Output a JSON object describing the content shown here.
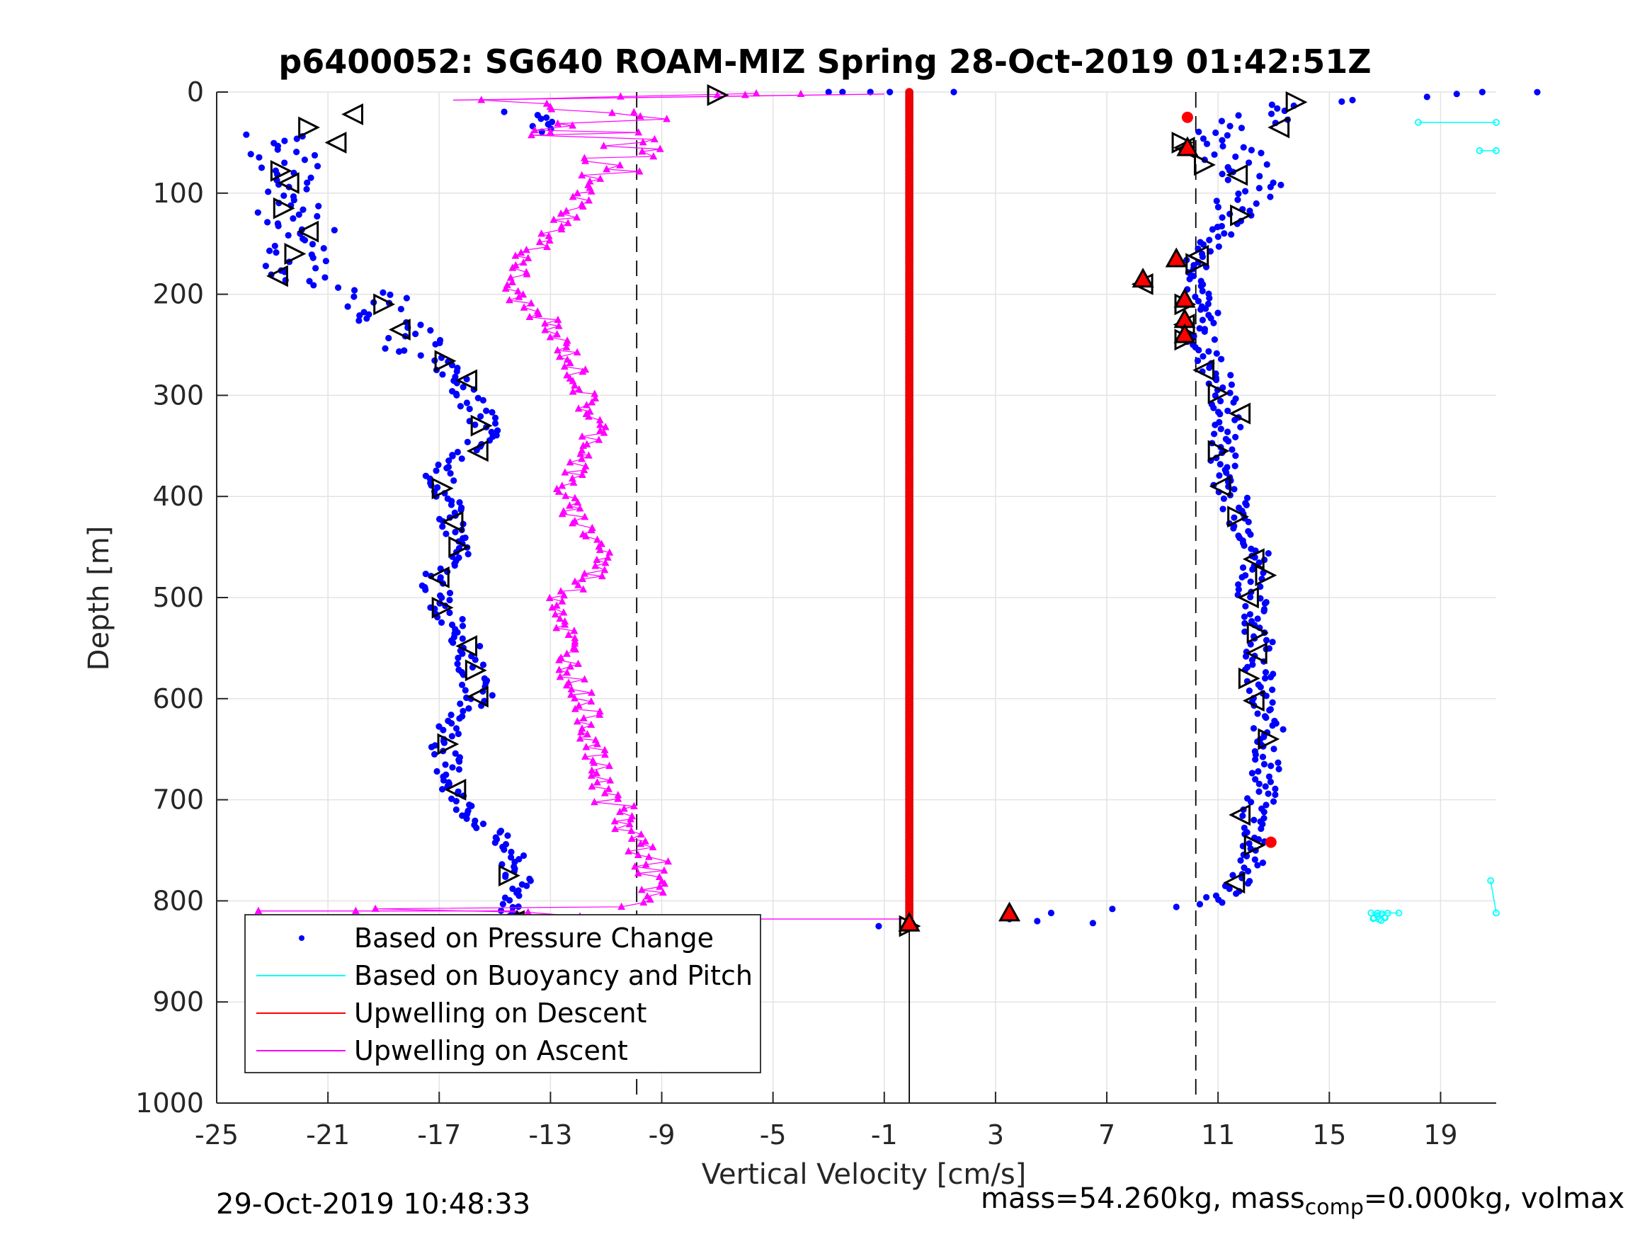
{
  "chart_data": {
    "type": "scatter",
    "title": "p6400052: SG640 ROAM-MIZ Spring 28-Oct-2019 01:42:51Z",
    "xlabel": "Vertical Velocity [cm/s]",
    "ylabel": "Depth [m]",
    "xlim": [
      -25,
      21
    ],
    "ylim": [
      0,
      1000
    ],
    "y_reversed": true,
    "grid": true,
    "xticks": [
      -25,
      -21,
      -17,
      -13,
      -9,
      -5,
      -1,
      3,
      7,
      11,
      15,
      19
    ],
    "yticks": [
      0,
      100,
      200,
      300,
      400,
      500,
      600,
      700,
      800,
      900,
      1000
    ],
    "legend_position": "bottom-left",
    "colors": {
      "pressure": "#0000ff",
      "buoyancy": "#00ffff",
      "upwell_descent": "#ff0000",
      "upwell_ascent": "#ff00ff"
    },
    "reference_lines": {
      "dashed_x": [
        -9.9,
        10.2
      ],
      "solid_x": [
        -0.1
      ]
    },
    "series": [
      {
        "name": "Based on Pressure Change",
        "style": "dots",
        "descent_profile": [
          [
            22.5,
            0
          ],
          [
            18.5,
            5
          ],
          [
            13.5,
            12
          ],
          [
            12.5,
            25
          ],
          [
            11,
            40
          ],
          [
            12,
            55
          ],
          [
            11.5,
            75
          ],
          [
            12.5,
            100
          ],
          [
            11.5,
            130
          ],
          [
            10.8,
            150
          ],
          [
            10.3,
            170
          ],
          [
            10.5,
            185
          ],
          [
            10.2,
            200
          ],
          [
            10.5,
            220
          ],
          [
            10.3,
            240
          ],
          [
            10.6,
            260
          ],
          [
            11,
            280
          ],
          [
            11.2,
            300
          ],
          [
            11.3,
            330
          ],
          [
            11.2,
            360
          ],
          [
            11.4,
            390
          ],
          [
            11.8,
            420
          ],
          [
            12.4,
            450
          ],
          [
            12.3,
            480
          ],
          [
            12.2,
            510
          ],
          [
            12.6,
            540
          ],
          [
            12.5,
            570
          ],
          [
            12.4,
            600
          ],
          [
            12.8,
            630
          ],
          [
            12.8,
            660
          ],
          [
            12.6,
            690
          ],
          [
            12.3,
            715
          ],
          [
            12.4,
            740
          ],
          [
            12.0,
            770
          ],
          [
            11.6,
            790
          ],
          [
            10.5,
            805
          ]
        ],
        "ascent_profile": [
          [
            -25,
            60
          ],
          [
            -23,
            40
          ],
          [
            -22.5,
            70
          ],
          [
            -22,
            100
          ],
          [
            -22.5,
            120
          ],
          [
            -21.8,
            140
          ],
          [
            -22,
            160
          ],
          [
            -22.5,
            180
          ],
          [
            -21,
            190
          ],
          [
            -19.5,
            200
          ],
          [
            -19,
            215
          ],
          [
            -18.5,
            235
          ],
          [
            -18,
            250
          ],
          [
            -17,
            265
          ],
          [
            -16.5,
            280
          ],
          [
            -16,
            300
          ],
          [
            -15.5,
            320
          ],
          [
            -15.2,
            340
          ],
          [
            -16.5,
            360
          ],
          [
            -17,
            380
          ],
          [
            -16.8,
            400
          ],
          [
            -16.5,
            430
          ],
          [
            -16.2,
            450
          ],
          [
            -17.2,
            480
          ],
          [
            -17,
            510
          ],
          [
            -16.2,
            530
          ],
          [
            -16,
            550
          ],
          [
            -15.8,
            580
          ],
          [
            -15.5,
            600
          ],
          [
            -16.5,
            620
          ],
          [
            -16.8,
            650
          ],
          [
            -16.6,
            680
          ],
          [
            -16.4,
            700
          ],
          [
            -15.8,
            715
          ],
          [
            -15.2,
            730
          ],
          [
            -14.5,
            750
          ],
          [
            -14.2,
            780
          ],
          [
            -14.3,
            800
          ],
          [
            -14.5,
            815
          ],
          [
            -13.8,
            820
          ]
        ],
        "surface_scatter": [
          [
            -1.5,
            0
          ],
          [
            -3,
            0
          ],
          [
            -2.5,
            0
          ],
          [
            -0.8,
            0
          ],
          [
            1.5,
            0
          ],
          [
            20.5,
            0
          ]
        ],
        "bottom_scatter": [
          [
            -1.2,
            825
          ],
          [
            3.5,
            818
          ],
          [
            5,
            812
          ],
          [
            4.5,
            820
          ],
          [
            6.5,
            822
          ],
          [
            7.2,
            808
          ],
          [
            9.5,
            806
          ]
        ]
      },
      {
        "name": "Based on Buoyancy and Pitch",
        "style": "line-markers",
        "points": [
          [
            18.2,
            30
          ],
          [
            21,
            30
          ],
          [
            20.4,
            58
          ],
          [
            21,
            58
          ],
          [
            16.5,
            812
          ],
          [
            17.5,
            812
          ],
          [
            21,
            812
          ],
          [
            20.8,
            780
          ]
        ]
      },
      {
        "name": "Upwelling on Descent",
        "style": "line-markers",
        "constant_x": -0.1,
        "depth_range": [
          0,
          825
        ]
      },
      {
        "name": "Upwelling on Ascent",
        "style": "line-triangles",
        "profile": [
          [
            -23.5,
            810
          ],
          [
            -14.2,
            810
          ],
          [
            -12.5,
            815
          ],
          [
            -10,
            805
          ],
          [
            -9.5,
            790
          ],
          [
            -9.3,
            770
          ],
          [
            -9.6,
            750
          ],
          [
            -10.2,
            730
          ],
          [
            -10.8,
            700
          ],
          [
            -11.2,
            680
          ],
          [
            -11.5,
            650
          ],
          [
            -11.6,
            620
          ],
          [
            -11.8,
            600
          ],
          [
            -12.2,
            580
          ],
          [
            -12.3,
            560
          ],
          [
            -12.4,
            540
          ],
          [
            -12.5,
            520
          ],
          [
            -12.6,
            500
          ],
          [
            -11.5,
            480
          ],
          [
            -11.0,
            455
          ],
          [
            -11.8,
            430
          ],
          [
            -12.4,
            410
          ],
          [
            -12.5,
            390
          ],
          [
            -12.0,
            370
          ],
          [
            -11.5,
            350
          ],
          [
            -11.3,
            330
          ],
          [
            -11.7,
            310
          ],
          [
            -11.9,
            290
          ],
          [
            -12.2,
            270
          ],
          [
            -12.4,
            255
          ],
          [
            -12.9,
            240
          ],
          [
            -13.2,
            225
          ],
          [
            -14.0,
            210
          ],
          [
            -14.5,
            195
          ],
          [
            -14.2,
            180
          ],
          [
            -13.8,
            160
          ],
          [
            -13.0,
            140
          ],
          [
            -12.2,
            120
          ],
          [
            -11.8,
            100
          ],
          [
            -11.5,
            80
          ],
          [
            -11.3,
            65
          ],
          [
            -11,
            50
          ],
          [
            -12,
            40
          ],
          [
            -10.5,
            30
          ],
          [
            -11.5,
            20
          ],
          [
            -12.5,
            12
          ],
          [
            -16.5,
            8
          ],
          [
            -10,
            5
          ],
          [
            -7,
            3
          ],
          [
            -4,
            2
          ],
          [
            -1,
            2
          ]
        ]
      }
    ],
    "ascent_arrow_markers": [
      [
        -20.1,
        22
      ],
      [
        -21.7,
        35
      ],
      [
        -20.7,
        50
      ],
      [
        -22.7,
        78
      ],
      [
        -22.4,
        90
      ],
      [
        -22.6,
        115
      ],
      [
        -21.7,
        138
      ],
      [
        -22.2,
        160
      ],
      [
        -22.8,
        182
      ],
      [
        -19,
        210
      ],
      [
        -18.4,
        235
      ],
      [
        -16.8,
        266
      ],
      [
        -16,
        285
      ],
      [
        -15.5,
        330
      ],
      [
        -15.6,
        355
      ],
      [
        -16.9,
        392
      ],
      [
        -16.5,
        425
      ],
      [
        -16.3,
        450
      ],
      [
        -17.0,
        480
      ],
      [
        -16.9,
        510
      ],
      [
        -16.0,
        548
      ],
      [
        -15.7,
        572
      ],
      [
        -15.6,
        598
      ],
      [
        -16.7,
        645
      ],
      [
        -16.4,
        690
      ],
      [
        -14.5,
        775
      ],
      [
        -14.3,
        820
      ],
      [
        -7,
        3
      ]
    ],
    "descent_arrow_markers": [
      [
        13.8,
        10
      ],
      [
        13.2,
        35
      ],
      [
        9.7,
        50
      ],
      [
        9.8,
        55
      ],
      [
        10.5,
        72
      ],
      [
        11.7,
        82
      ],
      [
        11.8,
        122
      ],
      [
        10.3,
        162
      ],
      [
        10.2,
        170
      ],
      [
        8.3,
        190
      ],
      [
        9.8,
        210
      ],
      [
        9.8,
        230
      ],
      [
        9.8,
        245
      ],
      [
        10.5,
        275
      ],
      [
        11.0,
        298
      ],
      [
        11.8,
        318
      ],
      [
        11.0,
        355
      ],
      [
        11.1,
        390
      ],
      [
        11.7,
        420
      ],
      [
        12.3,
        462
      ],
      [
        12.7,
        478
      ],
      [
        12.1,
        500
      ],
      [
        12.4,
        535
      ],
      [
        12.4,
        555
      ],
      [
        12.1,
        580
      ],
      [
        12.3,
        602
      ],
      [
        12.8,
        640
      ],
      [
        11.8,
        715
      ],
      [
        12.3,
        745
      ],
      [
        11.6,
        782
      ],
      [
        -0.1,
        825
      ]
    ],
    "red_markers": [
      [
        9.9,
        25
      ],
      [
        9.9,
        55
      ],
      [
        9.5,
        165
      ],
      [
        8.3,
        185
      ],
      [
        9.8,
        205
      ],
      [
        9.8,
        225
      ],
      [
        9.8,
        240
      ],
      [
        12.9,
        742
      ],
      [
        3.5,
        812
      ],
      [
        -14.2,
        820
      ],
      [
        -0.1,
        822
      ]
    ]
  },
  "footer": {
    "timestamp": "29-Oct-2019 10:48:33",
    "mass_text_a": "mass=54.260kg, mass",
    "mass_sub": "comp",
    "mass_text_b": "=0.000kg, volmax"
  }
}
